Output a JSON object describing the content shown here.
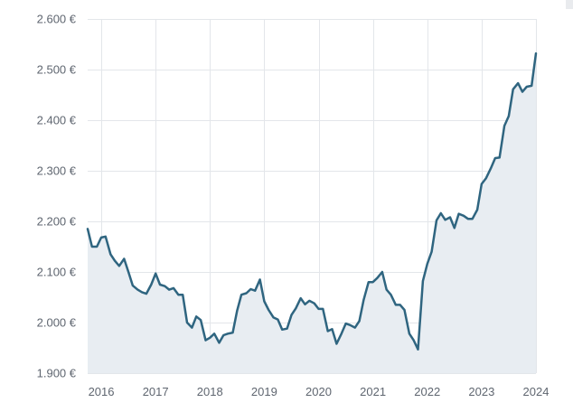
{
  "chart_data": {
    "type": "area",
    "title": "",
    "xlabel": "",
    "ylabel": "",
    "currency_suffix": "€",
    "y_ticks": [
      "1.900 €",
      "2.000 €",
      "2.100 €",
      "2.200 €",
      "2.300 €",
      "2.400 €",
      "2.500 €",
      "2.600 €"
    ],
    "y_tick_values": [
      1900,
      2000,
      2100,
      2200,
      2300,
      2400,
      2500,
      2600
    ],
    "ylim": [
      1900,
      2600
    ],
    "x_ticks": [
      "2016",
      "2017",
      "2018",
      "2019",
      "2020",
      "2021",
      "2022",
      "2023",
      "2024"
    ],
    "x_tick_values": [
      2016,
      2017,
      2018,
      2019,
      2020,
      2021,
      2022,
      2023,
      2024
    ],
    "xlim": [
      2015.75,
      2024.0
    ],
    "grid": true,
    "line_color": "#2f6580",
    "fill_color": "#e8edf2",
    "series": [
      {
        "x": [
          2015.75,
          2015.83,
          2015.92,
          2016.0,
          2016.08,
          2016.17,
          2016.25,
          2016.33,
          2016.42,
          2016.5,
          2016.58,
          2016.67,
          2016.75,
          2016.83,
          2016.92,
          2017.0,
          2017.08,
          2017.17,
          2017.25,
          2017.33,
          2017.42,
          2017.5,
          2017.58,
          2017.67,
          2017.75,
          2017.83,
          2017.92,
          2018.0,
          2018.08,
          2018.17,
          2018.25,
          2018.33,
          2018.42,
          2018.5,
          2018.58,
          2018.67,
          2018.75,
          2018.83,
          2018.92,
          2019.0,
          2019.08,
          2019.17,
          2019.25,
          2019.33,
          2019.42,
          2019.5,
          2019.58,
          2019.67,
          2019.75,
          2019.83,
          2019.92,
          2020.0,
          2020.08,
          2020.17,
          2020.25,
          2020.33,
          2020.42,
          2020.5,
          2020.58,
          2020.67,
          2020.75,
          2020.83,
          2020.92,
          2021.0,
          2021.08,
          2021.17,
          2021.25,
          2021.33,
          2021.42,
          2021.5,
          2021.58,
          2021.67,
          2021.75,
          2021.83,
          2021.92,
          2022.0,
          2022.08,
          2022.17,
          2022.25,
          2022.33,
          2022.42,
          2022.5,
          2022.58,
          2022.67,
          2022.75,
          2022.83,
          2022.92,
          2023.0,
          2023.08,
          2023.17,
          2023.25,
          2023.33,
          2023.42,
          2023.5,
          2023.58,
          2023.67,
          2023.75,
          2023.83,
          2023.92,
          2024.0
        ],
        "values": [
          2185,
          2150,
          2150,
          2168,
          2170,
          2135,
          2122,
          2112,
          2126,
          2100,
          2073,
          2065,
          2060,
          2057,
          2075,
          2097,
          2075,
          2072,
          2065,
          2068,
          2055,
          2055,
          2000,
          1990,
          2012,
          2005,
          1965,
          1970,
          1978,
          1960,
          1975,
          1978,
          1980,
          2023,
          2055,
          2058,
          2066,
          2063,
          2085,
          2042,
          2025,
          2010,
          2006,
          1986,
          1988,
          2015,
          2028,
          2048,
          2036,
          2043,
          2038,
          2027,
          2027,
          1983,
          1987,
          1958,
          1978,
          1998,
          1995,
          1990,
          2003,
          2045,
          2080,
          2080,
          2088,
          2100,
          2065,
          2055,
          2035,
          2035,
          2025,
          1978,
          1965,
          1947,
          2082,
          2116,
          2140,
          2202,
          2216,
          2203,
          2208,
          2187,
          2215,
          2211,
          2205,
          2205,
          2223,
          2274,
          2285,
          2305,
          2325,
          2326,
          2389,
          2408,
          2461,
          2473,
          2456,
          2466,
          2468,
          2532
        ]
      }
    ]
  }
}
